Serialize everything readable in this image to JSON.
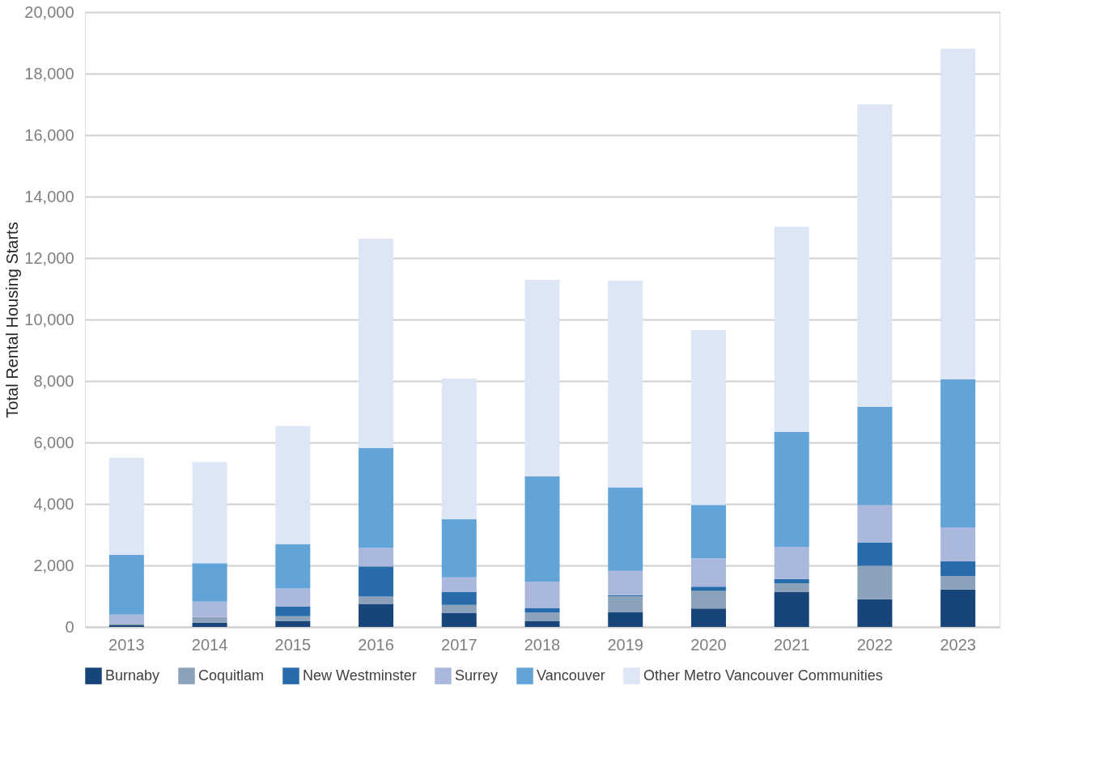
{
  "chart_data": {
    "type": "bar",
    "stacked": true,
    "ylabel": "Total Rental Housing Starts",
    "categories": [
      "2013",
      "2014",
      "2015",
      "2016",
      "2017",
      "2018",
      "2019",
      "2020",
      "2021",
      "2022",
      "2023"
    ],
    "series": [
      {
        "name": "Burnaby",
        "color": "#17457a",
        "values": [
          50,
          140,
          200,
          750,
          460,
          200,
          490,
          600,
          1130,
          900,
          1220
        ]
      },
      {
        "name": "Coquitlam",
        "color": "#8ba2ba",
        "values": [
          70,
          190,
          150,
          240,
          260,
          270,
          510,
          570,
          290,
          1090,
          430
        ]
      },
      {
        "name": "New Westminster",
        "color": "#276bab",
        "values": [
          null,
          null,
          310,
          980,
          410,
          150,
          30,
          140,
          140,
          760,
          490
        ]
      },
      {
        "name": "Surrey",
        "color": "#a9b8dc",
        "values": [
          280,
          490,
          590,
          600,
          480,
          850,
          790,
          920,
          1040,
          1210,
          1090
        ]
      },
      {
        "name": "Vancouver",
        "color": "#62a3d8",
        "values": [
          1940,
          1250,
          1450,
          3250,
          1890,
          3430,
          2720,
          1740,
          3740,
          3200,
          4830
        ]
      },
      {
        "name": "Other Metro Vancouver Communities",
        "color": "#dce6f4",
        "values": [
          3160,
          3290,
          3830,
          6810,
          4580,
          6390,
          6720,
          5690,
          6670,
          9840,
          10750
        ]
      }
    ],
    "ylim": [
      0,
      20000
    ],
    "yticks": [
      0,
      {
        "value": 2000,
        "label": "2,000"
      },
      {
        "value": 4000,
        "label": "4,000"
      },
      {
        "value": 6000,
        "label": "6,000"
      },
      {
        "value": 8000,
        "label": "8,000"
      },
      {
        "value": 10000,
        "label": "10,000"
      },
      {
        "value": 12000,
        "label": "12,000"
      },
      {
        "value": 14000,
        "label": "14,000"
      },
      {
        "value": 16000,
        "label": "16,000"
      },
      {
        "value": 18000,
        "label": "18,000"
      },
      {
        "value": 20000,
        "label": "20,000"
      }
    ],
    "grid": "y",
    "legend": "bottom"
  }
}
